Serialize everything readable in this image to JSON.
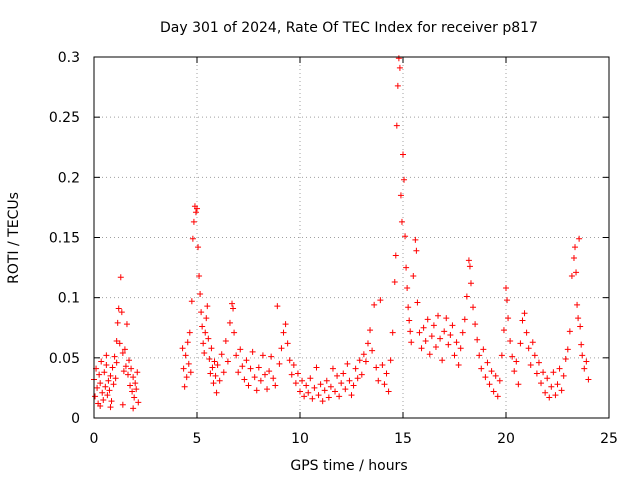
{
  "chart_data": {
    "type": "scatter",
    "title": "Day 301 of 2024, Rate Of TEC Index for receiver p817",
    "xlabel": "GPS time / hours",
    "ylabel": "ROTI / TECUs",
    "xlim": [
      0,
      25
    ],
    "ylim": [
      0,
      0.3
    ],
    "xticks": [
      0,
      5,
      10,
      15,
      20,
      25
    ],
    "xtick_labels": [
      "0",
      "5",
      "10",
      "15",
      "20",
      "25"
    ],
    "yticks": [
      0,
      0.05,
      0.1,
      0.15,
      0.2,
      0.25,
      0.3
    ],
    "ytick_labels": [
      "0",
      "0.05",
      "0.1",
      "0.15",
      "0.2",
      "0.25",
      "0.3"
    ],
    "grid": true,
    "marker": "+",
    "color": "#ff0000",
    "series": [
      {
        "points": [
          [
            0.0,
            0.032
          ],
          [
            0.05,
            0.018
          ],
          [
            0.1,
            0.041
          ],
          [
            0.15,
            0.025
          ],
          [
            0.2,
            0.012
          ],
          [
            0.25,
            0.036
          ],
          [
            0.3,
            0.029
          ],
          [
            0.35,
            0.047
          ],
          [
            0.4,
            0.021
          ],
          [
            0.45,
            0.015
          ],
          [
            0.5,
            0.038
          ],
          [
            0.55,
            0.026
          ],
          [
            0.6,
            0.044
          ],
          [
            0.65,
            0.019
          ],
          [
            0.7,
            0.031
          ],
          [
            0.75,
            0.023
          ],
          [
            0.8,
            0.035
          ],
          [
            0.85,
            0.014
          ],
          [
            0.9,
            0.042
          ],
          [
            0.95,
            0.028
          ],
          [
            1.0,
            0.051
          ],
          [
            1.05,
            0.033
          ],
          [
            1.1,
            0.046
          ],
          [
            1.15,
            0.079
          ],
          [
            1.2,
            0.091
          ],
          [
            1.25,
            0.062
          ],
          [
            1.3,
            0.117
          ],
          [
            1.35,
            0.088
          ],
          [
            1.4,
            0.054
          ],
          [
            1.45,
            0.039
          ],
          [
            1.5,
            0.057
          ],
          [
            1.55,
            0.043
          ],
          [
            1.6,
            0.078
          ],
          [
            1.65,
            0.036
          ],
          [
            1.7,
            0.048
          ],
          [
            1.75,
            0.027
          ],
          [
            1.8,
            0.041
          ],
          [
            1.85,
            0.022
          ],
          [
            1.9,
            0.034
          ],
          [
            1.95,
            0.017
          ],
          [
            2.0,
            0.029
          ],
          [
            2.05,
            0.024
          ],
          [
            2.1,
            0.038
          ],
          [
            2.15,
            0.013
          ],
          [
            0.3,
            0.01
          ],
          [
            0.8,
            0.009
          ],
          [
            1.4,
            0.011
          ],
          [
            1.9,
            0.008
          ],
          [
            0.6,
            0.052
          ],
          [
            1.1,
            0.064
          ],
          [
            4.3,
            0.058
          ],
          [
            4.35,
            0.041
          ],
          [
            4.4,
            0.026
          ],
          [
            4.45,
            0.052
          ],
          [
            4.5,
            0.034
          ],
          [
            4.55,
            0.063
          ],
          [
            4.6,
            0.045
          ],
          [
            4.65,
            0.071
          ],
          [
            4.7,
            0.038
          ],
          [
            4.75,
            0.097
          ],
          [
            4.8,
            0.149
          ],
          [
            4.85,
            0.163
          ],
          [
            4.9,
            0.176
          ],
          [
            4.95,
            0.171
          ],
          [
            5.0,
            0.174
          ],
          [
            5.05,
            0.142
          ],
          [
            5.1,
            0.118
          ],
          [
            5.15,
            0.103
          ],
          [
            5.2,
            0.088
          ],
          [
            5.25,
            0.076
          ],
          [
            5.3,
            0.062
          ],
          [
            5.35,
            0.054
          ],
          [
            5.4,
            0.071
          ],
          [
            5.45,
            0.083
          ],
          [
            5.5,
            0.093
          ],
          [
            5.55,
            0.066
          ],
          [
            5.6,
            0.049
          ],
          [
            5.65,
            0.037
          ],
          [
            5.7,
            0.058
          ],
          [
            5.75,
            0.042
          ],
          [
            5.8,
            0.029
          ],
          [
            5.85,
            0.047
          ],
          [
            5.9,
            0.035
          ],
          [
            5.95,
            0.021
          ],
          [
            6.0,
            0.044
          ],
          [
            6.1,
            0.031
          ],
          [
            6.2,
            0.053
          ],
          [
            6.3,
            0.038
          ],
          [
            6.4,
            0.064
          ],
          [
            6.5,
            0.047
          ],
          [
            6.6,
            0.079
          ],
          [
            6.7,
            0.095
          ],
          [
            6.75,
            0.091
          ],
          [
            6.8,
            0.071
          ],
          [
            6.9,
            0.052
          ],
          [
            7.0,
            0.038
          ],
          [
            7.1,
            0.057
          ],
          [
            7.2,
            0.043
          ],
          [
            7.3,
            0.032
          ],
          [
            7.4,
            0.048
          ],
          [
            7.5,
            0.027
          ],
          [
            7.6,
            0.041
          ],
          [
            7.7,
            0.055
          ],
          [
            7.8,
            0.034
          ],
          [
            7.9,
            0.023
          ],
          [
            8.0,
            0.042
          ],
          [
            8.1,
            0.031
          ],
          [
            8.2,
            0.052
          ],
          [
            8.3,
            0.036
          ],
          [
            8.4,
            0.024
          ],
          [
            8.5,
            0.039
          ],
          [
            8.6,
            0.051
          ],
          [
            8.7,
            0.033
          ],
          [
            8.8,
            0.027
          ],
          [
            8.9,
            0.093
          ],
          [
            9.0,
            0.045
          ],
          [
            9.1,
            0.058
          ],
          [
            9.2,
            0.071
          ],
          [
            9.3,
            0.078
          ],
          [
            9.4,
            0.062
          ],
          [
            9.5,
            0.048
          ],
          [
            9.6,
            0.036
          ],
          [
            9.7,
            0.044
          ],
          [
            9.8,
            0.029
          ],
          [
            9.9,
            0.037
          ],
          [
            10.0,
            0.022
          ],
          [
            10.1,
            0.031
          ],
          [
            10.2,
            0.018
          ],
          [
            10.3,
            0.027
          ],
          [
            10.4,
            0.021
          ],
          [
            10.5,
            0.033
          ],
          [
            10.6,
            0.016
          ],
          [
            10.7,
            0.025
          ],
          [
            10.8,
            0.042
          ],
          [
            10.9,
            0.019
          ],
          [
            11.0,
            0.028
          ],
          [
            11.1,
            0.014
          ],
          [
            11.2,
            0.023
          ],
          [
            11.3,
            0.031
          ],
          [
            11.4,
            0.017
          ],
          [
            11.5,
            0.026
          ],
          [
            11.6,
            0.041
          ],
          [
            11.7,
            0.022
          ],
          [
            11.8,
            0.035
          ],
          [
            11.9,
            0.018
          ],
          [
            12.0,
            0.029
          ],
          [
            12.1,
            0.037
          ],
          [
            12.2,
            0.024
          ],
          [
            12.3,
            0.045
          ],
          [
            12.4,
            0.031
          ],
          [
            12.5,
            0.019
          ],
          [
            12.6,
            0.027
          ],
          [
            12.7,
            0.041
          ],
          [
            12.8,
            0.033
          ],
          [
            12.9,
            0.048
          ],
          [
            13.0,
            0.036
          ],
          [
            13.1,
            0.053
          ],
          [
            13.2,
            0.047
          ],
          [
            13.3,
            0.062
          ],
          [
            13.4,
            0.073
          ],
          [
            13.5,
            0.056
          ],
          [
            13.6,
            0.094
          ],
          [
            13.7,
            0.042
          ],
          [
            13.8,
            0.031
          ],
          [
            13.9,
            0.098
          ],
          [
            14.0,
            0.044
          ],
          [
            14.1,
            0.028
          ],
          [
            14.2,
            0.037
          ],
          [
            14.3,
            0.022
          ],
          [
            14.4,
            0.048
          ],
          [
            14.5,
            0.071
          ],
          [
            14.6,
            0.113
          ],
          [
            14.65,
            0.135
          ],
          [
            14.7,
            0.243
          ],
          [
            14.75,
            0.276
          ],
          [
            14.8,
            0.299
          ],
          [
            14.85,
            0.291
          ],
          [
            14.9,
            0.185
          ],
          [
            14.95,
            0.163
          ],
          [
            15.0,
            0.219
          ],
          [
            15.05,
            0.198
          ],
          [
            15.1,
            0.151
          ],
          [
            15.15,
            0.125
          ],
          [
            15.2,
            0.108
          ],
          [
            15.25,
            0.092
          ],
          [
            15.3,
            0.081
          ],
          [
            15.35,
            0.072
          ],
          [
            15.4,
            0.063
          ],
          [
            15.5,
            0.118
          ],
          [
            15.6,
            0.148
          ],
          [
            15.65,
            0.139
          ],
          [
            15.7,
            0.096
          ],
          [
            15.8,
            0.071
          ],
          [
            15.9,
            0.058
          ],
          [
            16.0,
            0.075
          ],
          [
            16.1,
            0.064
          ],
          [
            16.2,
            0.082
          ],
          [
            16.3,
            0.053
          ],
          [
            16.4,
            0.068
          ],
          [
            16.5,
            0.077
          ],
          [
            16.6,
            0.059
          ],
          [
            16.7,
            0.085
          ],
          [
            16.8,
            0.066
          ],
          [
            16.9,
            0.048
          ],
          [
            17.0,
            0.072
          ],
          [
            17.1,
            0.083
          ],
          [
            17.2,
            0.061
          ],
          [
            17.3,
            0.069
          ],
          [
            17.4,
            0.077
          ],
          [
            17.5,
            0.052
          ],
          [
            17.6,
            0.063
          ],
          [
            17.7,
            0.044
          ],
          [
            17.8,
            0.058
          ],
          [
            17.9,
            0.071
          ],
          [
            18.0,
            0.082
          ],
          [
            18.1,
            0.101
          ],
          [
            18.2,
            0.131
          ],
          [
            18.25,
            0.126
          ],
          [
            18.3,
            0.112
          ],
          [
            18.4,
            0.092
          ],
          [
            18.5,
            0.078
          ],
          [
            18.6,
            0.065
          ],
          [
            18.7,
            0.052
          ],
          [
            18.8,
            0.041
          ],
          [
            18.9,
            0.057
          ],
          [
            19.0,
            0.034
          ],
          [
            19.1,
            0.046
          ],
          [
            19.2,
            0.028
          ],
          [
            19.3,
            0.039
          ],
          [
            19.4,
            0.022
          ],
          [
            19.5,
            0.035
          ],
          [
            19.6,
            0.018
          ],
          [
            19.7,
            0.031
          ],
          [
            19.8,
            0.052
          ],
          [
            19.9,
            0.073
          ],
          [
            20.0,
            0.108
          ],
          [
            20.05,
            0.098
          ],
          [
            20.1,
            0.083
          ],
          [
            20.2,
            0.064
          ],
          [
            20.3,
            0.051
          ],
          [
            20.4,
            0.039
          ],
          [
            20.5,
            0.047
          ],
          [
            20.6,
            0.028
          ],
          [
            20.7,
            0.062
          ],
          [
            20.8,
            0.081
          ],
          [
            20.9,
            0.087
          ],
          [
            21.0,
            0.071
          ],
          [
            21.1,
            0.058
          ],
          [
            21.2,
            0.044
          ],
          [
            21.3,
            0.063
          ],
          [
            21.4,
            0.052
          ],
          [
            21.5,
            0.037
          ],
          [
            21.6,
            0.046
          ],
          [
            21.7,
            0.029
          ],
          [
            21.8,
            0.038
          ],
          [
            21.9,
            0.021
          ],
          [
            22.0,
            0.033
          ],
          [
            22.1,
            0.017
          ],
          [
            22.2,
            0.026
          ],
          [
            22.3,
            0.038
          ],
          [
            22.4,
            0.019
          ],
          [
            22.5,
            0.028
          ],
          [
            22.6,
            0.041
          ],
          [
            22.7,
            0.023
          ],
          [
            22.8,
            0.035
          ],
          [
            22.9,
            0.049
          ],
          [
            23.0,
            0.057
          ],
          [
            23.1,
            0.072
          ],
          [
            23.2,
            0.118
          ],
          [
            23.3,
            0.133
          ],
          [
            23.35,
            0.142
          ],
          [
            23.4,
            0.121
          ],
          [
            23.45,
            0.094
          ],
          [
            23.5,
            0.083
          ],
          [
            23.55,
            0.149
          ],
          [
            23.6,
            0.076
          ],
          [
            23.65,
            0.061
          ],
          [
            23.7,
            0.052
          ],
          [
            23.8,
            0.041
          ],
          [
            23.9,
            0.047
          ],
          [
            24.0,
            0.032
          ]
        ]
      }
    ]
  }
}
